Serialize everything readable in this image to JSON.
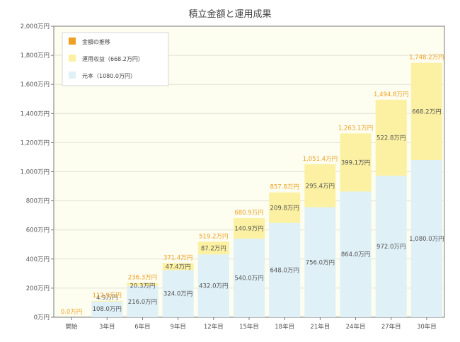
{
  "chart_data": {
    "type": "bar",
    "stacked": true,
    "title": "積立金額と運用成果",
    "categories": [
      "開始",
      "3年目",
      "6年目",
      "9年目",
      "12年目",
      "15年目",
      "18年目",
      "21年目",
      "24年目",
      "27年目",
      "30年目"
    ],
    "series": [
      {
        "name": "元本（1080.0万円）",
        "values": [
          0,
          108.0,
          216.0,
          324.0,
          432.0,
          540.0,
          648.0,
          756.0,
          864.0,
          972.0,
          1080.0
        ],
        "labels": [
          "",
          "108.0万円",
          "216.0万円",
          "324.0万円",
          "432.0万円",
          "540.0万円",
          "648.0万円",
          "756.0万円",
          "864.0万円",
          "972.0万円",
          "1,080.0万円"
        ],
        "color": "#dff0f7"
      },
      {
        "name": "運用収益（668.2万円）",
        "values": [
          0,
          4.9,
          20.3,
          47.4,
          87.2,
          140.9,
          209.8,
          295.4,
          399.1,
          522.8,
          668.2
        ],
        "labels": [
          "",
          "4.9万円",
          "20.3万円",
          "47.4万円",
          "87.2万円",
          "140.9万円",
          "209.8万円",
          "295.4万円",
          "399.1万円",
          "522.8万円",
          "668.2万円"
        ],
        "color": "#fcf1a2"
      }
    ],
    "totals": {
      "name": "金額の推移",
      "values": [
        0.0,
        112.9,
        236.3,
        371.4,
        519.2,
        680.9,
        857.8,
        1051.4,
        1263.1,
        1494.8,
        1748.2
      ],
      "labels": [
        "0.0万円",
        "112.9万円",
        "236.3万円",
        "371.4万円",
        "519.2万円",
        "680.9万円",
        "857.8万円",
        "1,051.4万円",
        "1,263.1万円",
        "1,494.8万円",
        "1,748.2万円"
      ],
      "color": "#f0a020"
    },
    "ylim": [
      0,
      2000
    ],
    "yticks": [
      0,
      200,
      400,
      600,
      800,
      1000,
      1200,
      1400,
      1600,
      1800,
      2000
    ],
    "ytick_labels": [
      "0万円",
      "200万円",
      "400万円",
      "600万円",
      "800万円",
      "1,000万円",
      "1,200万円",
      "1,400万円",
      "1,600万円",
      "1,800万円",
      "2,000万円"
    ],
    "grid": true,
    "legend_position": "top-left",
    "plot_background": "#fdfdf0"
  }
}
